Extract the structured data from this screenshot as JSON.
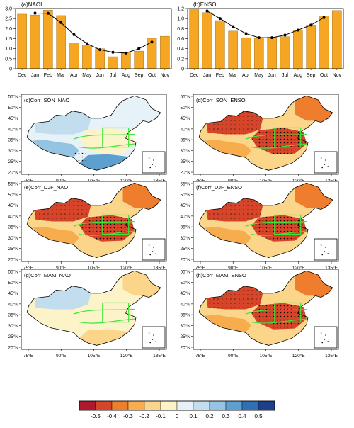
{
  "colors": {
    "bar": "#f5a623",
    "line": "#000000",
    "river": "#39e639",
    "scale": [
      "#b2182b",
      "#d6452a",
      "#ef7d2e",
      "#f7ad4d",
      "#fad58a",
      "#fdf3c8",
      "#e6f2f8",
      "#c1ddee",
      "#94c4e1",
      "#5d9fcf",
      "#2f6fb2",
      "#1d3f8c"
    ]
  },
  "chart_data": [
    {
      "type": "bar",
      "title": "(a)NAOI",
      "categories": [
        "Dec",
        "Jan",
        "Feb",
        "Mar",
        "Apr",
        "May",
        "Jun",
        "Jul",
        "Aug",
        "Sep",
        "Oct",
        "Nov"
      ],
      "ylim": [
        0,
        3.0
      ],
      "yticks": [
        "0",
        "0.5",
        "1.0",
        "1.5",
        "2.0",
        "2.5",
        "3.0"
      ],
      "series": [
        {
          "kind": "bar",
          "values": [
            2.72,
            2.68,
            2.92,
            2.65,
            1.3,
            1.17,
            1.0,
            0.6,
            0.82,
            0.88,
            1.52,
            1.62
          ]
        },
        {
          "kind": "line",
          "values": [
            null,
            2.77,
            2.76,
            2.3,
            1.7,
            1.25,
            0.95,
            0.82,
            0.78,
            1.0,
            1.33,
            null
          ]
        }
      ]
    },
    {
      "type": "bar",
      "title": "(b)ENSO",
      "categories": [
        "Dec",
        "Jan",
        "Feb",
        "Mar",
        "Apr",
        "May",
        "Jun",
        "Jul",
        "Aug",
        "Sep",
        "Oct",
        "Nov"
      ],
      "ylim": [
        0,
        1.2
      ],
      "yticks": [
        "0",
        "0.2",
        "0.4",
        "0.6",
        "0.8",
        "1.0",
        "1.2"
      ],
      "series": [
        {
          "kind": "bar",
          "values": [
            1.2,
            1.12,
            0.96,
            0.75,
            0.62,
            0.62,
            0.63,
            0.64,
            0.77,
            0.87,
            1.05,
            1.16
          ]
        },
        {
          "kind": "line",
          "values": [
            null,
            1.15,
            1.0,
            0.84,
            0.7,
            0.62,
            0.62,
            0.67,
            0.77,
            0.87,
            1.02,
            null
          ]
        }
      ]
    },
    {
      "type": "heatmap",
      "maps": [
        {
          "label": "(c)Corr_SON_NAO",
          "dominant": "negative"
        },
        {
          "label": "(d)Corr_SON_ENSO",
          "dominant": "positive"
        },
        {
          "label": "(e)Corr_DJF_NAO",
          "dominant": "positive"
        },
        {
          "label": "(f)Corr_DJF_ENSO",
          "dominant": "positive"
        },
        {
          "label": "(g)Corr_MAM_NAO",
          "dominant": "mixed"
        },
        {
          "label": "(h)Corr_MAM_ENSO",
          "dominant": "positive"
        }
      ],
      "lat_ticks": [
        "55°N",
        "50°N",
        "45°N",
        "40°N",
        "35°N",
        "30°N",
        "25°N",
        "20°N"
      ],
      "lon_ticks": [
        "75°E",
        "90°E",
        "105°E",
        "120°E",
        "135°E"
      ],
      "colorbar": {
        "labels": [
          "-0.5",
          "-0.4",
          "-0.3",
          "-0.2",
          "-0.1",
          "0",
          "0.1",
          "0.2",
          "0.3",
          "0.4",
          "0.5"
        ],
        "range": [
          -0.6,
          0.6
        ]
      }
    }
  ]
}
